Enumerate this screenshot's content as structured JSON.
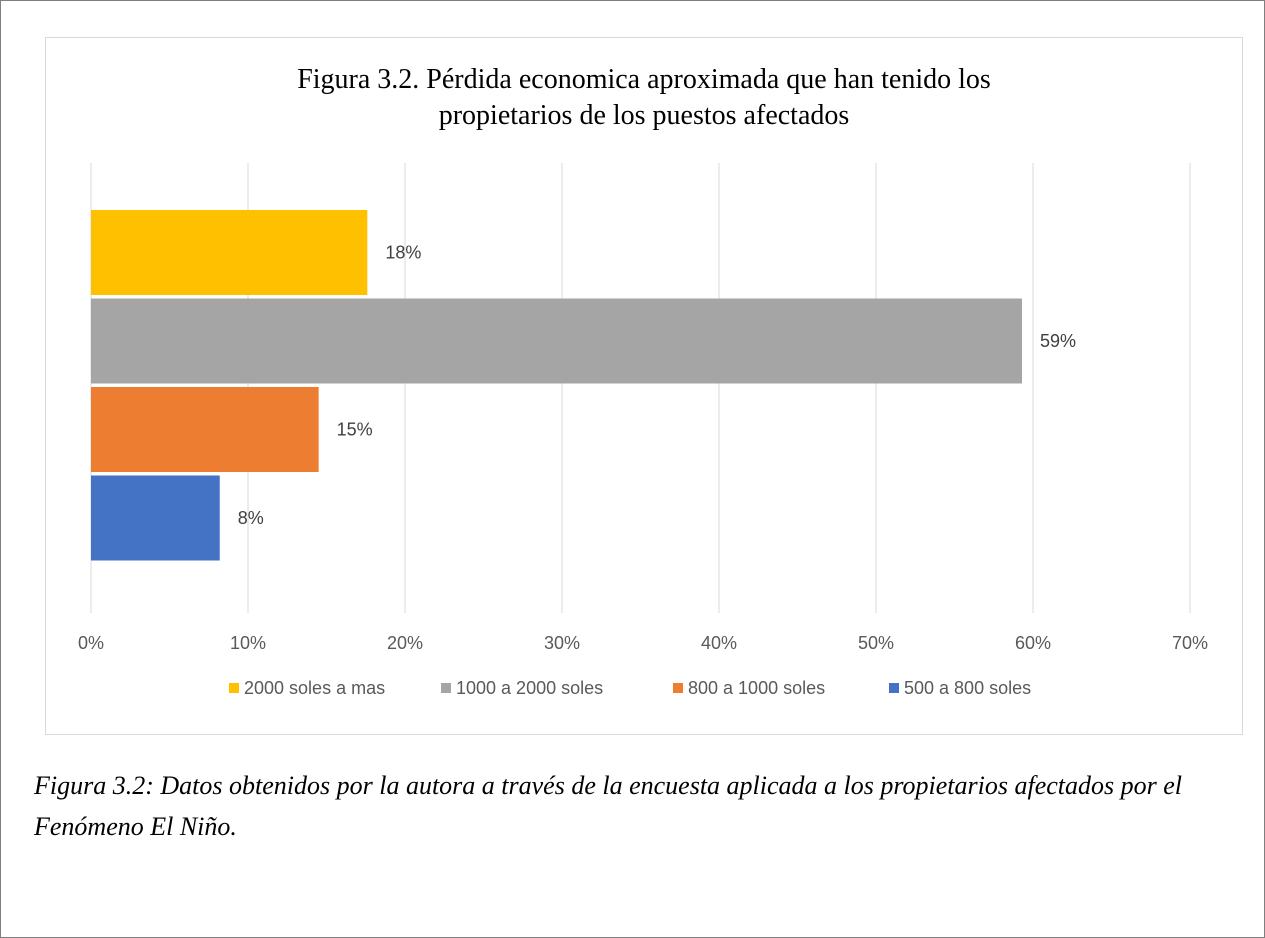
{
  "chart_data": {
    "type": "bar",
    "orientation": "horizontal",
    "title_line1": "Figura 3.2. Pérdida economica aproximada que han tenido los",
    "title_line2": "propietarios de los puestos afectados",
    "xlim": [
      0,
      70
    ],
    "xticks": [
      "0%",
      "10%",
      "20%",
      "30%",
      "40%",
      "50%",
      "60%",
      "70%"
    ],
    "grid": true,
    "legend_position": "bottom",
    "series": [
      {
        "name": "2000 soles a mas",
        "value": 17.6,
        "label": "18%",
        "color": "#FFC000"
      },
      {
        "name": "1000 a 2000 soles",
        "value": 59.3,
        "label": "59%",
        "color": "#A5A5A5"
      },
      {
        "name": "800 a 1000 soles",
        "value": 14.5,
        "label": "15%",
        "color": "#ED7D31"
      },
      {
        "name": "500 a 800 soles",
        "value": 8.2,
        "label": "8%",
        "color": "#4472C4"
      }
    ]
  },
  "caption": "Figura 3.2: Datos obtenidos por la autora a través de la encuesta aplicada a los propietarios afectados por el Fenómeno El Niño."
}
